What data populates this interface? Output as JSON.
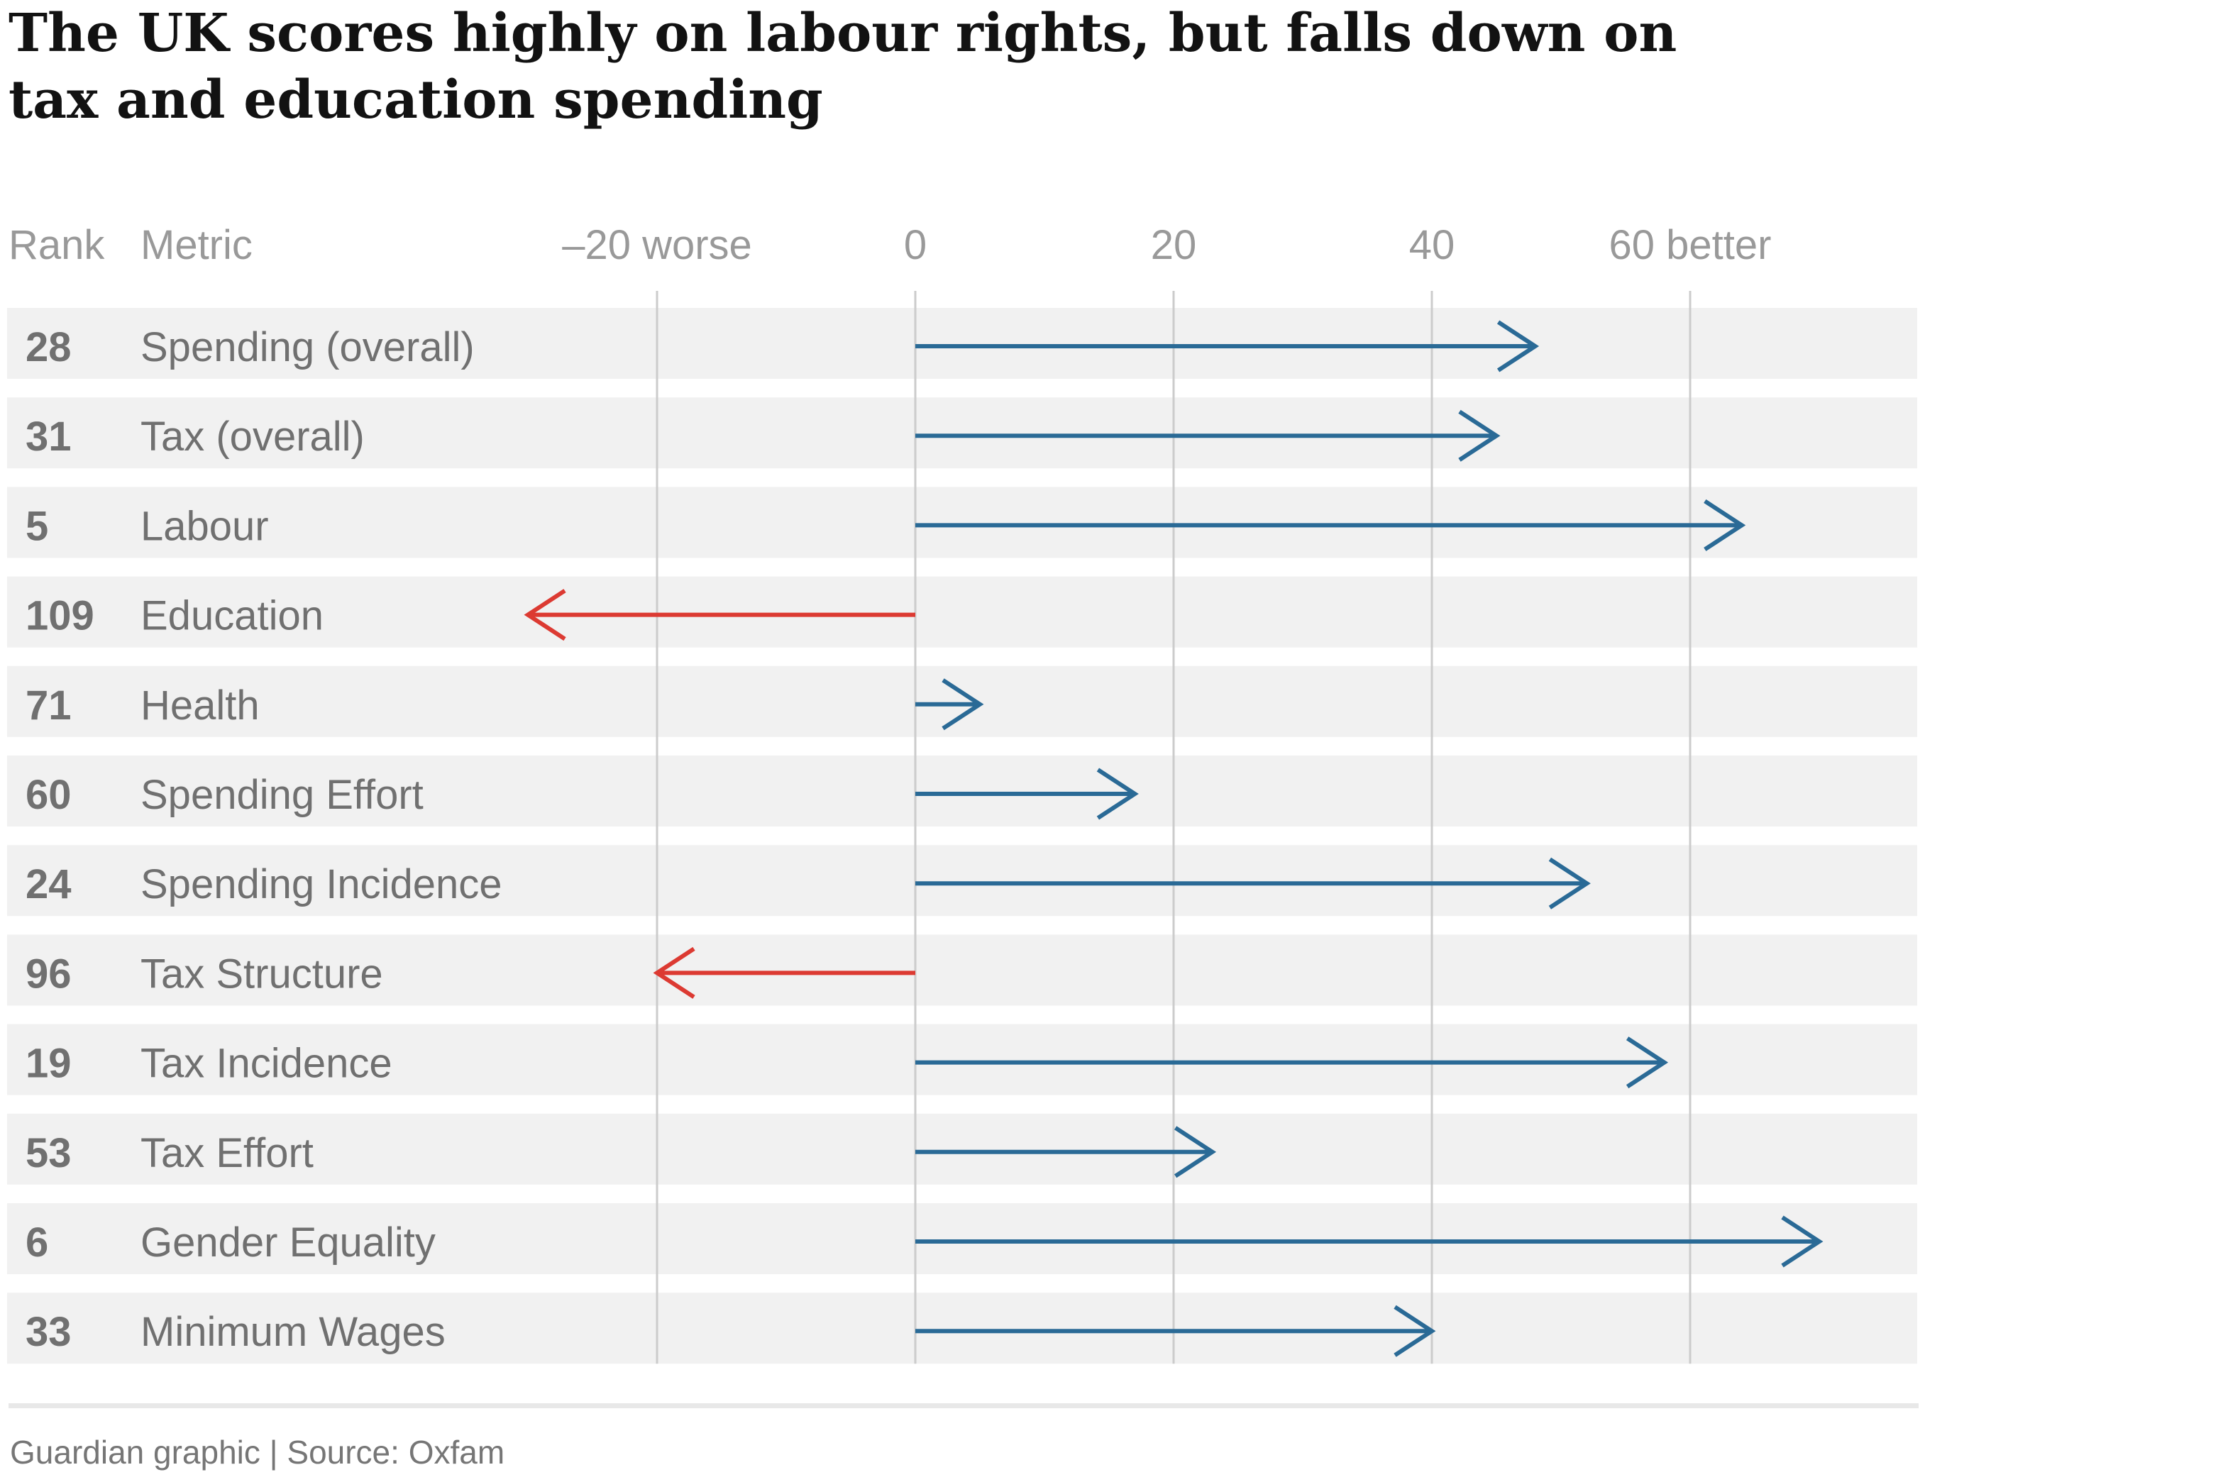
{
  "title": "The UK scores highly on labour rights, but falls down on tax and education spending",
  "source": "Guardian graphic | Source: Oxfam",
  "colors": {
    "positive": "#2a6a96",
    "negative": "#dc3a32",
    "row_bg": "#f1f1f1",
    "grid": "#cccccc"
  },
  "chart_data": {
    "type": "bar",
    "column_headers": {
      "rank": "Rank",
      "metric": "Metric"
    },
    "x_ticks": [
      {
        "value": -20,
        "label": "–20 worse"
      },
      {
        "value": 0,
        "label": "0"
      },
      {
        "value": 20,
        "label": "20"
      },
      {
        "value": 40,
        "label": "40"
      },
      {
        "value": 60,
        "label": "60 better"
      }
    ],
    "xlim": [
      -30,
      78
    ],
    "grid": true,
    "rows": [
      {
        "rank": "28",
        "metric": "Spending (overall)",
        "value": 48
      },
      {
        "rank": "31",
        "metric": "Tax (overall)",
        "value": 45
      },
      {
        "rank": "5",
        "metric": "Labour",
        "value": 64
      },
      {
        "rank": "109",
        "metric": "Education",
        "value": -30
      },
      {
        "rank": "71",
        "metric": "Health",
        "value": 5
      },
      {
        "rank": "60",
        "metric": "Spending Effort",
        "value": 17
      },
      {
        "rank": "24",
        "metric": "Spending Incidence",
        "value": 52
      },
      {
        "rank": "96",
        "metric": "Tax Structure",
        "value": -20
      },
      {
        "rank": "19",
        "metric": "Tax Incidence",
        "value": 58
      },
      {
        "rank": "53",
        "metric": "Tax Effort",
        "value": 23
      },
      {
        "rank": "6",
        "metric": "Gender Equality",
        "value": 70
      },
      {
        "rank": "33",
        "metric": "Minimum Wages",
        "value": 40
      }
    ]
  }
}
